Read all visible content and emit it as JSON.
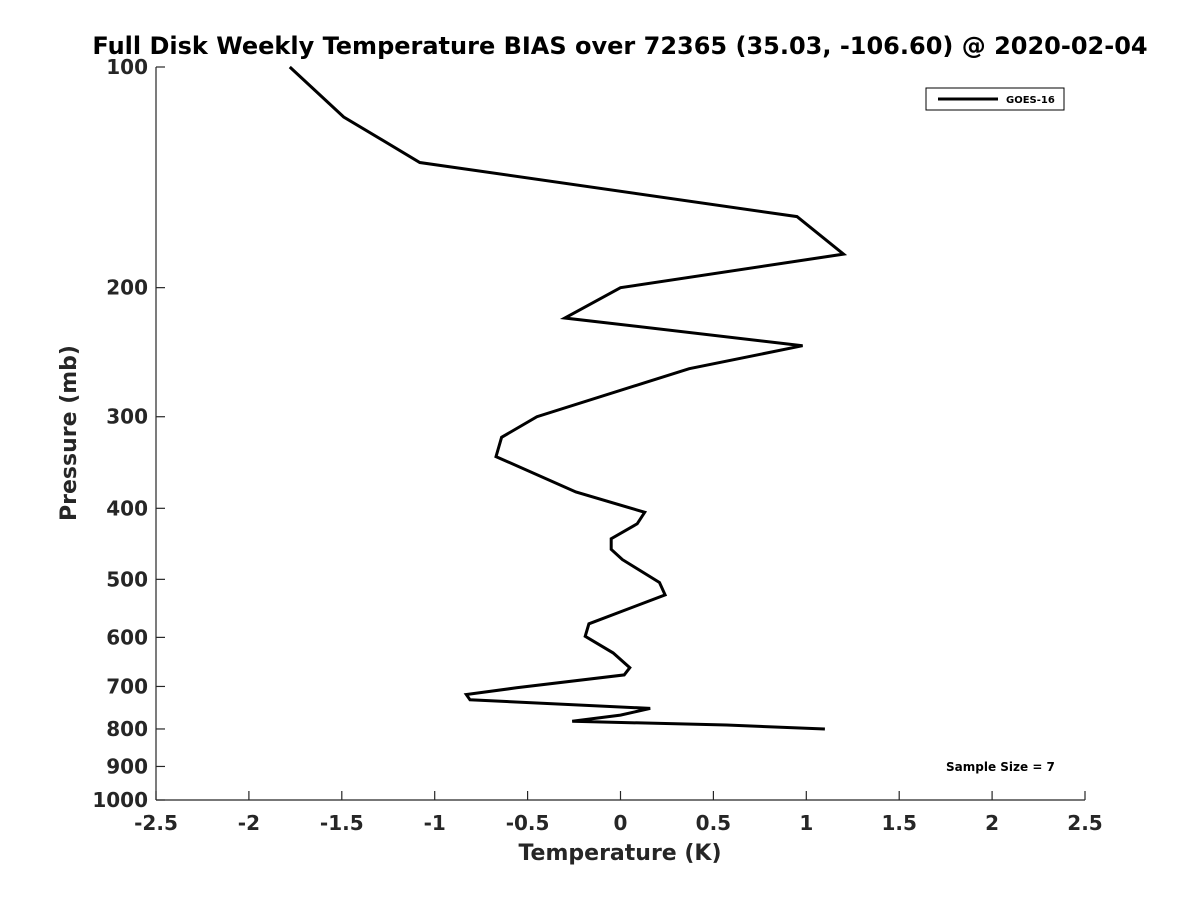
{
  "chart_data": {
    "type": "line",
    "title": "Full Disk Weekly Temperature BIAS over 72365 (35.03, -106.60) @ 2020-02-04",
    "xlabel": "Temperature (K)",
    "ylabel": "Pressure (mb)",
    "xlim": [
      -2.5,
      2.5
    ],
    "ylim": [
      1000,
      100
    ],
    "y_scale": "log",
    "y_reversed": true,
    "grid": false,
    "legend_position": "top-right",
    "x_ticks": [
      "-2.5",
      "-2",
      "-1.5",
      "-1",
      "-0.5",
      "0",
      "0.5",
      "1",
      "1.5",
      "2",
      "2.5"
    ],
    "x_tick_values": [
      -2.5,
      -2,
      -1.5,
      -1,
      -0.5,
      0,
      0.5,
      1,
      1.5,
      2,
      2.5
    ],
    "y_ticks": [
      "100",
      "200",
      "300",
      "400",
      "500",
      "600",
      "700",
      "800",
      "900",
      "1000"
    ],
    "y_tick_values": [
      100,
      200,
      300,
      400,
      500,
      600,
      700,
      800,
      900,
      1000
    ],
    "series": [
      {
        "name": "GOES-16",
        "color": "#000000",
        "x": [
          -1.78,
          -1.49,
          -1.08,
          0.95,
          1.2,
          0.0,
          -0.3,
          0.98,
          0.37,
          -0.45,
          -0.64,
          -0.67,
          -0.24,
          0.13,
          0.09,
          -0.05,
          -0.05,
          0.01,
          0.21,
          0.24,
          -0.17,
          -0.19,
          -0.04,
          0.05,
          0.02,
          -0.56,
          -0.83,
          -0.81,
          0.16,
          0.0,
          -0.26,
          0.57,
          1.1
        ],
        "y": [
          100,
          117,
          135,
          160,
          180,
          200,
          220,
          240,
          258,
          300,
          320,
          340,
          380,
          405,
          420,
          440,
          455,
          470,
          505,
          525,
          575,
          598,
          630,
          660,
          675,
          703,
          718,
          730,
          750,
          766,
          781,
          790,
          800
        ]
      }
    ],
    "annotations": [
      "Sample Size = 7"
    ]
  }
}
